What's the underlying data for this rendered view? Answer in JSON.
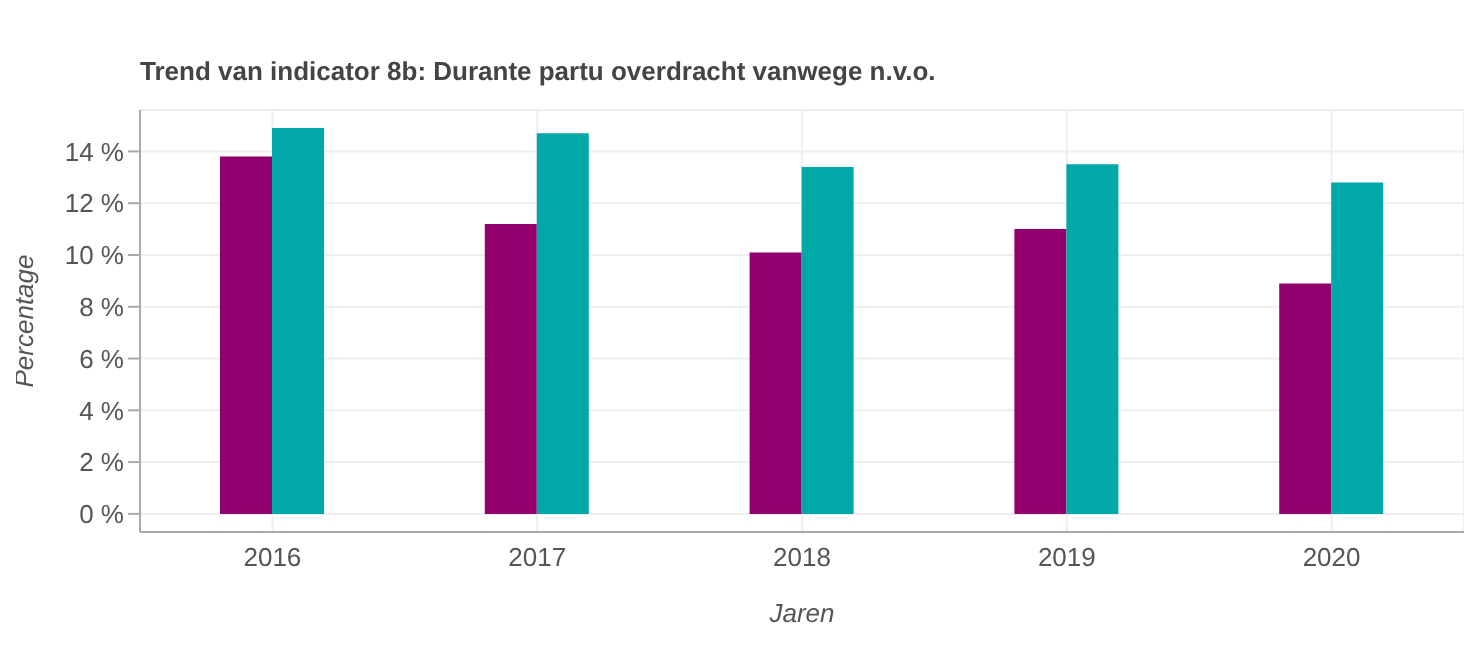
{
  "chart_data": {
    "type": "bar",
    "title": "Trend van indicator 8b: Durante partu overdracht vanwege n.v.o.",
    "xlabel": "Jaren",
    "ylabel": "Percentage",
    "categories": [
      "2016",
      "2017",
      "2018",
      "2019",
      "2020"
    ],
    "series": [
      {
        "color": "#93006e",
        "values": [
          13.8,
          11.2,
          10.1,
          11.0,
          8.9
        ]
      },
      {
        "color": "#00a9a8",
        "values": [
          14.9,
          14.7,
          13.4,
          13.5,
          12.8
        ]
      }
    ],
    "ylim": [
      -0.7,
      15.6
    ],
    "yticks": [
      {
        "value": 0,
        "label": "0 %"
      },
      {
        "value": 2,
        "label": "2 %"
      },
      {
        "value": 4,
        "label": "4 %"
      },
      {
        "value": 6,
        "label": "6 %"
      },
      {
        "value": 8,
        "label": "8 %"
      },
      {
        "value": 10,
        "label": "10 %"
      },
      {
        "value": 12,
        "label": "12 %"
      },
      {
        "value": 14,
        "label": "14 %"
      }
    ],
    "grid": true,
    "legend": false
  }
}
